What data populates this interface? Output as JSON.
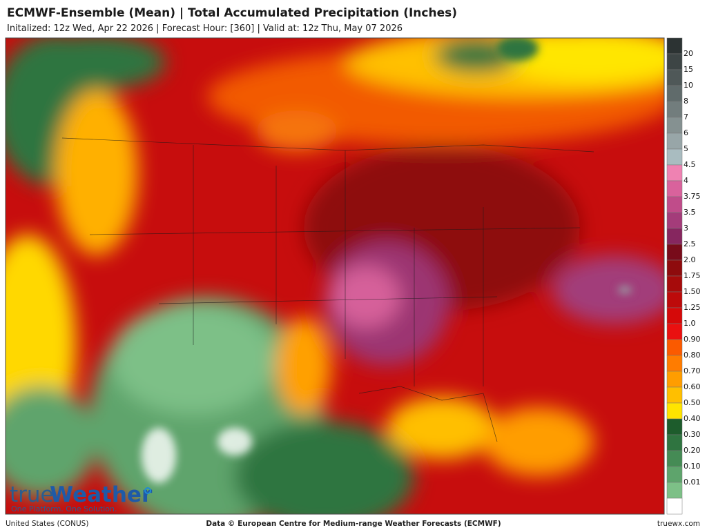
{
  "header": {
    "title": "ECMWF-Ensemble (Mean)  | Total Accumulated Precipitation (Inches)",
    "subtitle": "Initalized: 12z Wed, Apr 22 2026  | Forecast Hour: [360]  | Valid at: 12z Thu, May 07 2026"
  },
  "legend": {
    "labels": [
      "20",
      "15",
      "10",
      "8",
      "7",
      "6",
      "5",
      "4.5",
      "4",
      "3.75",
      "3.5",
      "3",
      "2.5",
      "2.0",
      "1.75",
      "1.50",
      "1.25",
      "1.0",
      "0.90",
      "0.80",
      "0.70",
      "0.60",
      "0.50",
      "0.40",
      "0.30",
      "0.20",
      "0.10",
      "0.01"
    ],
    "colors": [
      "#2c3333",
      "#3d4545",
      "#4f5858",
      "#606b6b",
      "#727d7d",
      "#859191",
      "#98a6a8",
      "#a9bcc0",
      "#ef82b2",
      "#d9629c",
      "#c04c8a",
      "#a43c7a",
      "#86265f",
      "#780b1a",
      "#8e0b0d",
      "#a60b0b",
      "#bd0a0a",
      "#d50909",
      "#ea1010",
      "#fb5a00",
      "#ff7c00",
      "#ff9d00",
      "#ffbf00",
      "#ffe400",
      "#1d5c2c",
      "#2f7440",
      "#458b55",
      "#5ea46c",
      "#7dc087",
      "#ffffff"
    ]
  },
  "logo": {
    "name_first": "true",
    "name_second": "Weather",
    "tagline": "One Platform. One Solution."
  },
  "footer": {
    "region": "United States (CONUS)",
    "credit": "Data © European Centre for Medium-range Weather Forecasts (ECMWF)",
    "site": "truewx.com"
  }
}
